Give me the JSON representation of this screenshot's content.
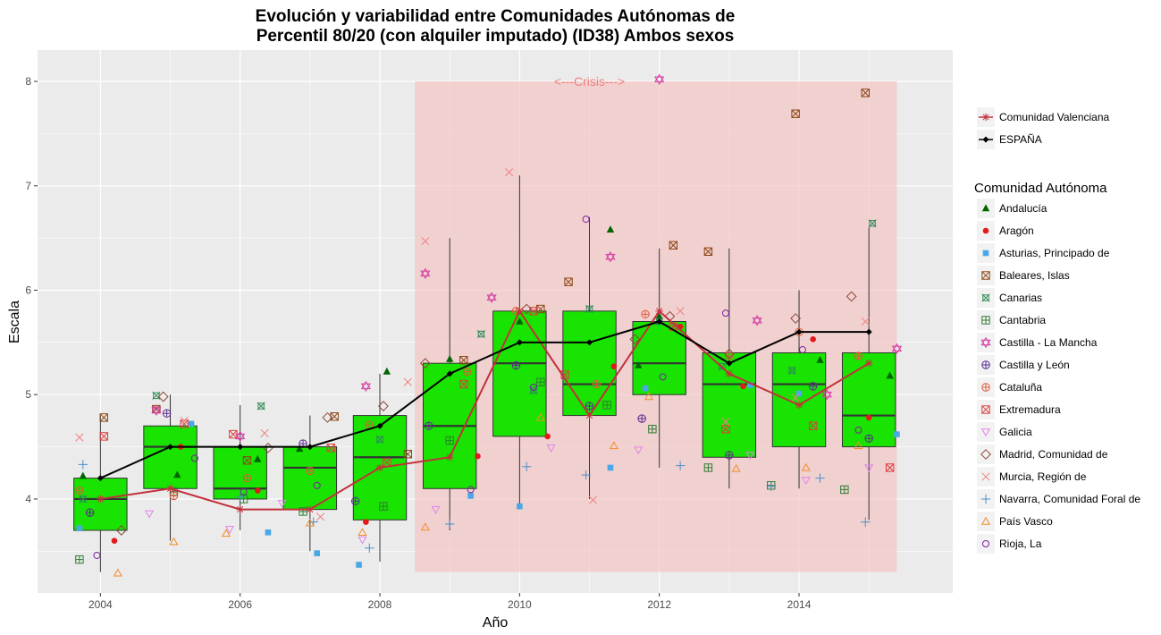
{
  "chart_data": {
    "type": "box",
    "title_lines": [
      "Evolución y variabilidad entre Comunidades Autónomas de",
      "Percentil 80/20 (con alquiler imputado) (ID38) Ambos sexos"
    ],
    "xlabel": "Año",
    "ylabel": "Escala",
    "xlim": [
      2003.1,
      2016.2
    ],
    "ylim": [
      3.1,
      8.3
    ],
    "x_ticks": [
      2004,
      2006,
      2008,
      2010,
      2012,
      2014
    ],
    "y_ticks": [
      4,
      5,
      6,
      7,
      8
    ],
    "grid": true,
    "crisis_band": {
      "x_start": 2008.5,
      "x_end": 2015.4,
      "y_start": 3.3,
      "y_end": 8.0,
      "label": "<---Crisis--->",
      "label_x": 2011,
      "label_y": 8.0,
      "color": "#f4c2c2"
    },
    "box_color": "#19e300",
    "boxes": [
      {
        "year": 2004,
        "min": 3.3,
        "q1": 3.7,
        "median": 4.0,
        "q3": 4.2,
        "max": 4.8
      },
      {
        "year": 2005,
        "min": 3.6,
        "q1": 4.1,
        "median": 4.5,
        "q3": 4.7,
        "max": 5.0
      },
      {
        "year": 2006,
        "min": 3.7,
        "q1": 4.0,
        "median": 4.1,
        "q3": 4.5,
        "max": 4.9
      },
      {
        "year": 2007,
        "min": 3.5,
        "q1": 3.9,
        "median": 4.3,
        "q3": 4.5,
        "max": 4.8
      },
      {
        "year": 2008,
        "min": 3.4,
        "q1": 3.8,
        "median": 4.4,
        "q3": 4.8,
        "max": 5.2
      },
      {
        "year": 2009,
        "min": 3.7,
        "q1": 4.1,
        "median": 4.7,
        "q3": 5.3,
        "max": 6.5
      },
      {
        "year": 2010,
        "min": 3.9,
        "q1": 4.6,
        "median": 5.3,
        "q3": 5.8,
        "max": 7.1
      },
      {
        "year": 2011,
        "min": 4.0,
        "q1": 4.8,
        "median": 5.1,
        "q3": 5.8,
        "max": 6.7
      },
      {
        "year": 2012,
        "min": 4.3,
        "q1": 5.0,
        "median": 5.3,
        "q3": 5.7,
        "max": 6.4
      },
      {
        "year": 2013,
        "min": 4.1,
        "q1": 4.4,
        "median": 5.1,
        "q3": 5.4,
        "max": 6.4
      },
      {
        "year": 2014,
        "min": 4.1,
        "q1": 4.5,
        "median": 5.1,
        "q3": 5.4,
        "max": 6.0
      },
      {
        "year": 2015,
        "min": 3.8,
        "q1": 4.5,
        "median": 4.8,
        "q3": 5.4,
        "max": 6.6
      }
    ],
    "lines": [
      {
        "name": "Comunidad Valenciana",
        "color": "#c2303b",
        "marker": "asterisk",
        "x": [
          2004,
          2005,
          2006,
          2007,
          2008,
          2009,
          2010,
          2011,
          2012,
          2013,
          2014,
          2015
        ],
        "y": [
          4.0,
          4.1,
          3.9,
          3.9,
          4.3,
          4.4,
          5.8,
          4.8,
          5.8,
          5.2,
          4.9,
          5.3
        ]
      },
      {
        "name": "ESPAÑA",
        "color": "#000000",
        "marker": "diamond",
        "x": [
          2004,
          2005,
          2006,
          2007,
          2008,
          2009,
          2010,
          2011,
          2012,
          2013,
          2014,
          2015
        ],
        "y": [
          4.2,
          4.5,
          4.5,
          4.5,
          4.7,
          5.2,
          5.5,
          5.5,
          5.7,
          5.3,
          5.6,
          5.6
        ]
      }
    ],
    "series": [
      {
        "name": "Andalucía",
        "color": "#006400",
        "marker": "triangle-filled",
        "points": [
          [
            2003.75,
            4.22
          ],
          [
            2005.1,
            4.23
          ],
          [
            2006.25,
            4.38
          ],
          [
            2006.85,
            4.48
          ],
          [
            2008.1,
            5.22
          ],
          [
            2009.0,
            5.34
          ],
          [
            2010.0,
            5.7
          ],
          [
            2011.3,
            6.58
          ],
          [
            2011.7,
            5.28
          ],
          [
            2012.0,
            5.75
          ],
          [
            2014.3,
            5.33
          ],
          [
            2015.3,
            5.18
          ]
        ]
      },
      {
        "name": "Aragón",
        "color": "#e31a1c",
        "marker": "circle-filled",
        "points": [
          [
            2004.2,
            3.6
          ],
          [
            2005.15,
            4.5
          ],
          [
            2006.25,
            4.08
          ],
          [
            2007.8,
            3.78
          ],
          [
            2009.4,
            4.41
          ],
          [
            2010.4,
            4.6
          ],
          [
            2011.35,
            5.27
          ],
          [
            2012.3,
            5.65
          ],
          [
            2013.2,
            5.08
          ],
          [
            2014.2,
            5.53
          ],
          [
            2015.0,
            4.78
          ]
        ]
      },
      {
        "name": "Asturias, Principado de",
        "color": "#4aa8e8",
        "marker": "square-filled",
        "points": [
          [
            2003.7,
            3.72
          ],
          [
            2005.3,
            4.72
          ],
          [
            2006.4,
            3.68
          ],
          [
            2007.1,
            3.48
          ],
          [
            2007.7,
            3.37
          ],
          [
            2009.3,
            4.03
          ],
          [
            2010.0,
            3.93
          ],
          [
            2011.3,
            4.3
          ],
          [
            2011.8,
            5.06
          ],
          [
            2013.3,
            5.09
          ],
          [
            2014.0,
            5.01
          ],
          [
            2015.4,
            4.62
          ]
        ]
      },
      {
        "name": "Baleares, Islas",
        "color": "#8b4513",
        "marker": "square-x",
        "points": [
          [
            2004.05,
            4.78
          ],
          [
            2004.8,
            4.86
          ],
          [
            2006.1,
            4.37
          ],
          [
            2007.35,
            4.79
          ],
          [
            2008.4,
            4.43
          ],
          [
            2009.2,
            5.33
          ],
          [
            2010.3,
            5.82
          ],
          [
            2010.7,
            6.08
          ],
          [
            2012.2,
            6.43
          ],
          [
            2012.7,
            6.37
          ],
          [
            2013.95,
            7.69
          ],
          [
            2014.95,
            7.89
          ]
        ]
      },
      {
        "name": "Canarias",
        "color": "#2e8b57",
        "marker": "square-cross",
        "points": [
          [
            2003.75,
            4.0
          ],
          [
            2004.8,
            4.99
          ],
          [
            2006.3,
            4.89
          ],
          [
            2008.0,
            4.57
          ],
          [
            2009.45,
            5.58
          ],
          [
            2010.2,
            5.04
          ],
          [
            2011.0,
            5.82
          ],
          [
            2012.0,
            5.7
          ],
          [
            2012.9,
            5.27
          ],
          [
            2013.9,
            5.23
          ],
          [
            2015.05,
            6.64
          ]
        ]
      },
      {
        "name": "Cantabria",
        "color": "#2e7d32",
        "marker": "square-plus",
        "points": [
          [
            2003.7,
            3.42
          ],
          [
            2005.05,
            4.07
          ],
          [
            2006.05,
            4.0
          ],
          [
            2006.9,
            3.88
          ],
          [
            2008.05,
            3.93
          ],
          [
            2009.0,
            4.56
          ],
          [
            2010.3,
            5.12
          ],
          [
            2011.25,
            4.9
          ],
          [
            2011.9,
            4.67
          ],
          [
            2012.7,
            4.3
          ],
          [
            2013.6,
            4.13
          ],
          [
            2014.65,
            4.09
          ]
        ]
      },
      {
        "name": "Castilla - La Mancha",
        "color": "#d63aa4",
        "marker": "star-david",
        "points": [
          [
            2004.8,
            4.85
          ],
          [
            2006.0,
            4.6
          ],
          [
            2007.8,
            5.08
          ],
          [
            2008.65,
            6.16
          ],
          [
            2009.6,
            5.93
          ],
          [
            2011.3,
            6.32
          ],
          [
            2012.0,
            8.02
          ],
          [
            2013.4,
            5.71
          ],
          [
            2014.4,
            5.0
          ],
          [
            2015.4,
            5.44
          ]
        ]
      },
      {
        "name": "Castilla y León",
        "color": "#5b2c8f",
        "marker": "circle-plus",
        "points": [
          [
            2003.85,
            3.87
          ],
          [
            2004.95,
            4.82
          ],
          [
            2006.9,
            4.53
          ],
          [
            2007.65,
            3.98
          ],
          [
            2008.7,
            4.7
          ],
          [
            2009.95,
            5.28
          ],
          [
            2011.0,
            4.89
          ],
          [
            2011.75,
            4.77
          ],
          [
            2013.0,
            4.42
          ],
          [
            2014.2,
            5.08
          ],
          [
            2015.0,
            4.58
          ]
        ]
      },
      {
        "name": "Cataluña",
        "color": "#e05a3a",
        "marker": "circle-plus",
        "points": [
          [
            2003.7,
            4.08
          ],
          [
            2005.05,
            4.03
          ],
          [
            2006.1,
            4.2
          ],
          [
            2007.0,
            4.27
          ],
          [
            2007.85,
            4.71
          ],
          [
            2009.25,
            5.22
          ],
          [
            2009.95,
            5.8
          ],
          [
            2011.1,
            5.1
          ],
          [
            2011.8,
            5.77
          ],
          [
            2013.0,
            5.37
          ],
          [
            2014.0,
            5.6
          ],
          [
            2014.85,
            5.37
          ]
        ]
      },
      {
        "name": "Extremadura",
        "color": "#d94040",
        "marker": "square-x",
        "points": [
          [
            2004.05,
            4.6
          ],
          [
            2005.2,
            4.72
          ],
          [
            2005.9,
            4.62
          ],
          [
            2007.3,
            4.49
          ],
          [
            2008.1,
            4.35
          ],
          [
            2009.2,
            5.1
          ],
          [
            2010.2,
            5.8
          ],
          [
            2010.65,
            5.19
          ],
          [
            2012.2,
            5.65
          ],
          [
            2012.95,
            4.67
          ],
          [
            2014.2,
            4.7
          ],
          [
            2015.3,
            4.3
          ]
        ]
      },
      {
        "name": "Galicia",
        "color": "#e283e8",
        "marker": "triangle-down",
        "points": [
          [
            2004.7,
            3.86
          ],
          [
            2005.85,
            3.71
          ],
          [
            2006.6,
            3.96
          ],
          [
            2007.75,
            3.61
          ],
          [
            2008.8,
            3.9
          ],
          [
            2010.45,
            4.49
          ],
          [
            2011.7,
            4.47
          ],
          [
            2013.3,
            4.42
          ],
          [
            2014.1,
            4.18
          ],
          [
            2015.0,
            4.3
          ]
        ]
      },
      {
        "name": "Madrid, Comunidad de",
        "color": "#8b4a3c",
        "marker": "diamond-open",
        "points": [
          [
            2004.3,
            3.7
          ],
          [
            2004.9,
            4.98
          ],
          [
            2006.4,
            4.49
          ],
          [
            2007.25,
            4.78
          ],
          [
            2008.05,
            4.89
          ],
          [
            2008.65,
            5.3
          ],
          [
            2010.1,
            5.82
          ],
          [
            2011.65,
            5.53
          ],
          [
            2012.15,
            5.75
          ],
          [
            2013.0,
            5.39
          ],
          [
            2013.95,
            5.73
          ],
          [
            2014.75,
            5.94
          ]
        ]
      },
      {
        "name": "Murcia, Región de",
        "color": "#f08080",
        "marker": "x",
        "points": [
          [
            2003.7,
            4.59
          ],
          [
            2005.2,
            4.75
          ],
          [
            2006.35,
            4.63
          ],
          [
            2007.15,
            3.83
          ],
          [
            2008.4,
            5.12
          ],
          [
            2008.65,
            6.47
          ],
          [
            2009.85,
            7.13
          ],
          [
            2011.05,
            3.99
          ],
          [
            2012.3,
            5.8
          ],
          [
            2012.95,
            4.74
          ],
          [
            2013.95,
            4.97
          ],
          [
            2014.95,
            5.7
          ]
        ]
      },
      {
        "name": "Navarra, Comunidad Foral de",
        "color": "#4a90c8",
        "marker": "plus",
        "points": [
          [
            2003.75,
            4.33
          ],
          [
            2006.0,
            4.02
          ],
          [
            2007.05,
            3.78
          ],
          [
            2007.85,
            3.53
          ],
          [
            2009.0,
            3.76
          ],
          [
            2010.1,
            4.31
          ],
          [
            2010.95,
            4.23
          ],
          [
            2012.3,
            4.32
          ],
          [
            2013.6,
            4.12
          ],
          [
            2014.3,
            4.2
          ],
          [
            2014.95,
            3.78
          ]
        ]
      },
      {
        "name": "País Vasco",
        "color": "#f28c28",
        "marker": "triangle-open",
        "points": [
          [
            2004.25,
            3.29
          ],
          [
            2005.05,
            3.59
          ],
          [
            2005.8,
            3.67
          ],
          [
            2007.0,
            3.77
          ],
          [
            2007.75,
            3.68
          ],
          [
            2008.65,
            3.73
          ],
          [
            2010.3,
            4.78
          ],
          [
            2011.35,
            4.51
          ],
          [
            2011.85,
            4.98
          ],
          [
            2013.1,
            4.29
          ],
          [
            2014.1,
            4.3
          ],
          [
            2014.85,
            4.51
          ]
        ]
      },
      {
        "name": "Rioja, La",
        "color": "#7b1fa2",
        "marker": "circle-open",
        "points": [
          [
            2003.95,
            3.46
          ],
          [
            2005.35,
            4.39
          ],
          [
            2006.05,
            4.07
          ],
          [
            2007.1,
            4.13
          ],
          [
            2009.3,
            4.09
          ],
          [
            2010.2,
            5.07
          ],
          [
            2010.95,
            6.68
          ],
          [
            2012.05,
            5.17
          ],
          [
            2012.95,
            5.78
          ],
          [
            2014.05,
            5.43
          ],
          [
            2014.85,
            4.66
          ]
        ]
      }
    ],
    "legend": {
      "top_entries": [
        "Comunidad Valenciana",
        "ESPAÑA"
      ],
      "title": "Comunidad Autónoma",
      "placement": "right"
    }
  }
}
